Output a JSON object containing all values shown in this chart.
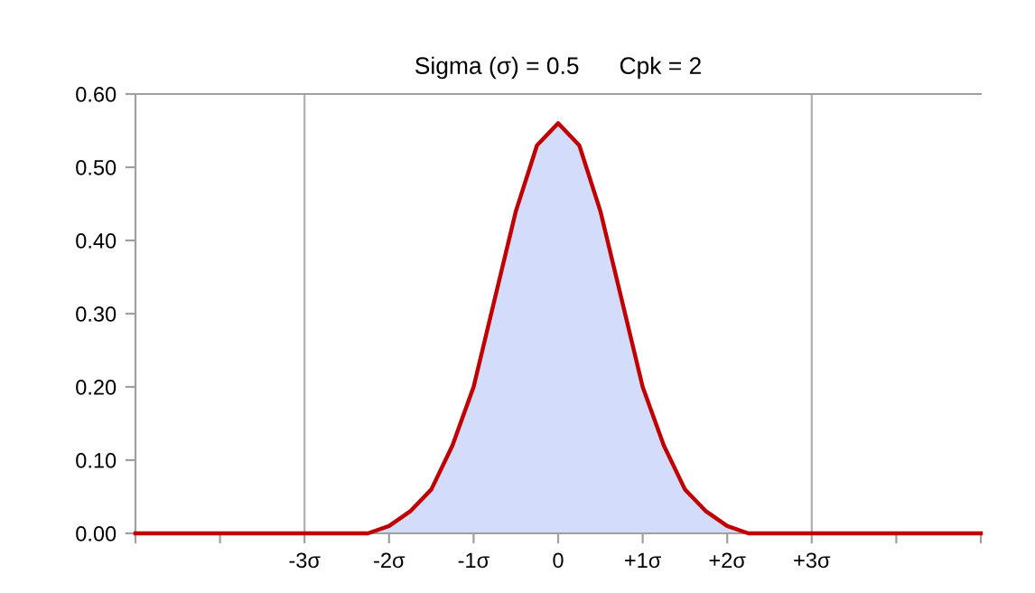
{
  "chart_data": {
    "type": "area",
    "title": "Sigma (σ) = 0.5      Cpk = 2",
    "x": [
      -5,
      -2.75,
      -2.5,
      -2.25,
      -2,
      -1.75,
      -1.5,
      -1.25,
      -1,
      -0.75,
      -0.5,
      -0.25,
      0,
      0.25,
      0.5,
      0.75,
      1,
      1.25,
      1.5,
      1.75,
      2,
      2.25,
      2.5,
      2.75,
      5
    ],
    "series": [
      {
        "color": "#c00000",
        "values": [
          0,
          0,
          0,
          0,
          0.01,
          0.03,
          0.06,
          0.12,
          0.2,
          0.32,
          0.44,
          0.53,
          0.56,
          0.53,
          0.44,
          0.32,
          0.2,
          0.12,
          0.06,
          0.03,
          0.01,
          0,
          0,
          0,
          0
        ]
      }
    ],
    "xlim": [
      -5,
      5
    ],
    "xticks": [
      {
        "value": -5,
        "label": null
      },
      {
        "value": -4,
        "label": null
      },
      {
        "value": -3,
        "label": "-3σ"
      },
      {
        "value": -2,
        "label": "-2σ"
      },
      {
        "value": -1,
        "label": "-1σ"
      },
      0,
      {
        "value": 1,
        "label": "+1σ"
      },
      {
        "value": 2,
        "label": "+2σ"
      },
      {
        "value": 3,
        "label": "+3σ"
      },
      {
        "value": 4,
        "label": null
      },
      {
        "value": 5,
        "label": null
      }
    ],
    "ylim": [
      0,
      0.6
    ],
    "yticks": [
      {
        "value": 0,
        "label": "0.00"
      },
      {
        "value": 0.1,
        "label": "0.10"
      },
      {
        "value": 0.2,
        "label": "0.20"
      },
      {
        "value": 0.3,
        "label": "0.30"
      },
      {
        "value": 0.4,
        "label": "0.40"
      },
      {
        "value": 0.5,
        "label": "0.50"
      },
      {
        "value": 0.6,
        "label": "0.60"
      }
    ],
    "ref_lines": [
      {
        "axis": "x",
        "value": -3,
        "color": "#b0b0b0"
      },
      {
        "axis": "x",
        "value": 3,
        "color": "#b0b0b0"
      }
    ],
    "grid": false,
    "legend": false
  }
}
